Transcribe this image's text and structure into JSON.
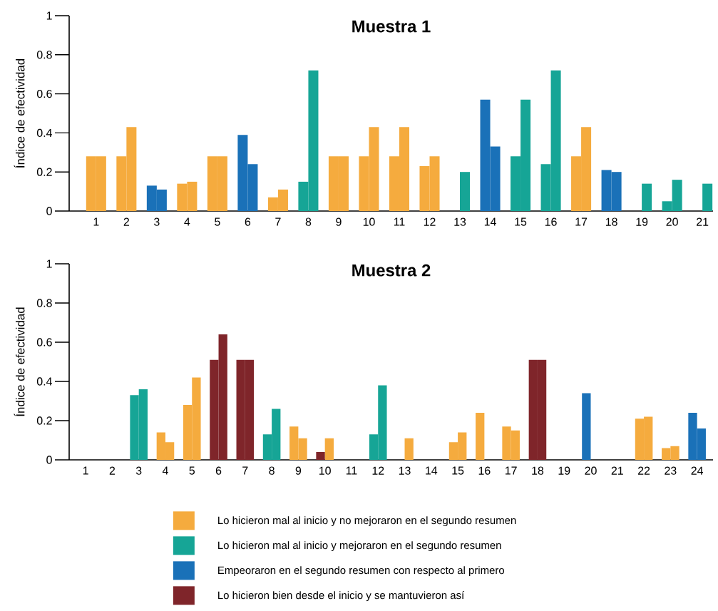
{
  "chart_data": [
    {
      "type": "bar",
      "title": "Muestra 1",
      "ylabel": "Índice de efectividad",
      "categories": [
        "1",
        "2",
        "3",
        "4",
        "5",
        "6",
        "7",
        "8",
        "9",
        "10",
        "11",
        "12",
        "13",
        "14",
        "15",
        "16",
        "17",
        "18",
        "19",
        "20",
        "21"
      ],
      "ylim": [
        0,
        1
      ],
      "yticks": [
        0,
        0.2,
        0.4,
        0.6,
        0.8,
        1
      ],
      "series": [
        {
          "color": "#f5ab3e",
          "values": [
            0.28,
            0.28,
            null,
            0.14,
            0.28,
            null,
            0.07,
            null,
            0.28,
            0.28,
            0.28,
            0.23,
            null,
            null,
            null,
            null,
            0.28,
            null,
            null,
            null,
            null
          ]
        },
        {
          "color": "#f5ab3e",
          "values": [
            0.28,
            0.43,
            null,
            0.15,
            0.28,
            null,
            0.11,
            null,
            0.28,
            0.43,
            0.43,
            0.28,
            null,
            null,
            null,
            null,
            0.43,
            null,
            null,
            null,
            null
          ]
        },
        {
          "color": "#16a596",
          "values": [
            null,
            null,
            null,
            null,
            null,
            null,
            null,
            0.15,
            null,
            null,
            null,
            null,
            0,
            null,
            0.28,
            0.24,
            null,
            null,
            0,
            0.05,
            0
          ]
        },
        {
          "color": "#16a596",
          "values": [
            null,
            null,
            null,
            null,
            null,
            null,
            null,
            0.72,
            null,
            null,
            null,
            null,
            0.2,
            null,
            0.57,
            0.72,
            null,
            null,
            0.14,
            0.16,
            0.14
          ]
        },
        {
          "color": "#1a71b8",
          "values": [
            null,
            null,
            0.13,
            null,
            null,
            0.39,
            null,
            null,
            null,
            null,
            null,
            null,
            null,
            0.57,
            null,
            null,
            null,
            0.21,
            null,
            null,
            null
          ]
        },
        {
          "color": "#1a71b8",
          "values": [
            null,
            null,
            0.11,
            null,
            null,
            0.24,
            null,
            null,
            null,
            null,
            null,
            null,
            null,
            0.33,
            null,
            null,
            null,
            0.2,
            null,
            null,
            null
          ]
        }
      ]
    },
    {
      "type": "bar",
      "title": "Muestra 2",
      "ylabel": "Índice de efectividad",
      "categories": [
        "1",
        "2",
        "3",
        "4",
        "5",
        "6",
        "7",
        "8",
        "9",
        "10",
        "11",
        "12",
        "13",
        "14",
        "15",
        "16",
        "17",
        "18",
        "19",
        "20",
        "21",
        "22",
        "23",
        "24"
      ],
      "ylim": [
        0,
        1
      ],
      "yticks": [
        0,
        0.2,
        0.4,
        0.6,
        0.8,
        1
      ],
      "legend": "bottom",
      "series": [
        {
          "name": "Lo hicieron mal al inicio y no mejoraron en el segundo resumen",
          "color": "#f5ab3e",
          "values": [
            null,
            null,
            null,
            0.14,
            0.28,
            null,
            null,
            null,
            0.17,
            null,
            null,
            null,
            0,
            null,
            0.09,
            0.24,
            0.17,
            null,
            null,
            null,
            null,
            0.21,
            0.06,
            null
          ]
        },
        {
          "color": "#f5ab3e",
          "values": [
            null,
            null,
            null,
            0.09,
            0.42,
            null,
            null,
            null,
            0.11,
            0.11,
            null,
            null,
            0.11,
            null,
            0.14,
            0,
            0.15,
            null,
            null,
            null,
            null,
            0.22,
            0.07,
            null
          ]
        },
        {
          "name": "Lo hicieron mal al inicio y mejoraron en el segundo resumen",
          "color": "#16a596",
          "values": [
            null,
            null,
            0.33,
            null,
            null,
            null,
            null,
            0.13,
            null,
            null,
            null,
            0.13,
            null,
            null,
            null,
            null,
            null,
            null,
            null,
            null,
            null,
            null,
            null,
            null
          ]
        },
        {
          "color": "#16a596",
          "values": [
            null,
            null,
            0.36,
            null,
            null,
            null,
            null,
            0.26,
            null,
            null,
            null,
            0.38,
            null,
            null,
            null,
            null,
            null,
            null,
            null,
            null,
            null,
            null,
            null,
            null
          ]
        },
        {
          "name": "Empeoraron en el segundo resumen con respecto al primero",
          "color": "#1a71b8",
          "values": [
            null,
            null,
            null,
            null,
            null,
            null,
            null,
            null,
            null,
            null,
            null,
            null,
            null,
            null,
            null,
            null,
            null,
            null,
            null,
            0.34,
            null,
            null,
            null,
            0.24
          ]
        },
        {
          "color": "#1a71b8",
          "values": [
            null,
            null,
            null,
            null,
            null,
            null,
            null,
            null,
            null,
            null,
            null,
            null,
            null,
            null,
            null,
            null,
            null,
            null,
            null,
            0,
            null,
            null,
            null,
            0.16
          ]
        },
        {
          "name": "Lo hicieron bien desde el inicio y se mantuvieron así",
          "color": "#7f252a",
          "values": [
            null,
            null,
            null,
            null,
            null,
            0.51,
            0.51,
            null,
            null,
            0.04,
            null,
            null,
            null,
            null,
            null,
            null,
            null,
            0.51,
            null,
            null,
            null,
            null,
            null,
            null
          ]
        },
        {
          "color": "#7f252a",
          "values": [
            null,
            null,
            null,
            null,
            null,
            0.64,
            0.51,
            null,
            null,
            null,
            null,
            null,
            null,
            null,
            null,
            null,
            null,
            0.51,
            null,
            null,
            null,
            null,
            null,
            null
          ]
        }
      ]
    }
  ]
}
